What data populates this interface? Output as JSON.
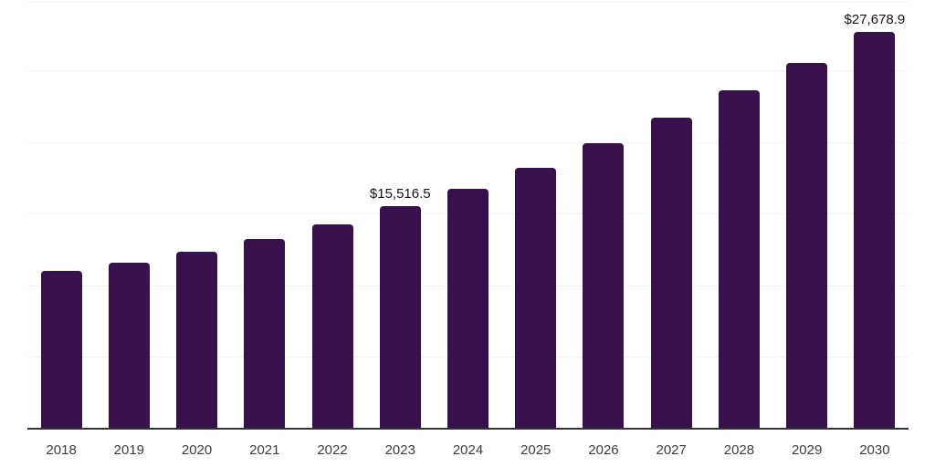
{
  "chart_data": {
    "type": "bar",
    "title": "",
    "xlabel": "",
    "ylabel": "",
    "categories": [
      "2018",
      "2019",
      "2020",
      "2021",
      "2022",
      "2023",
      "2024",
      "2025",
      "2026",
      "2027",
      "2028",
      "2029",
      "2030"
    ],
    "values": [
      11040,
      11590,
      12360,
      13250,
      14290,
      15516.5,
      16770,
      18220,
      19920,
      21720,
      23650,
      25540,
      27678.9
    ],
    "value_labels": {
      "2023": "$15,516.5",
      "2030": "$27,678.9"
    },
    "ylim": [
      0,
      29800
    ],
    "gridline_values": [
      5000,
      10000,
      15000,
      20000,
      25000,
      29800
    ],
    "grid": "horizontal",
    "legend": "none",
    "y_axis_labels_visible": false
  },
  "style": {
    "background": "#ffffff",
    "bar_color": "#36114d",
    "axis_line_color": "#333333",
    "gridline_color": "#f3f3f4",
    "tick_label_color": "#3d3d3d",
    "data_label_color": "#131313"
  }
}
